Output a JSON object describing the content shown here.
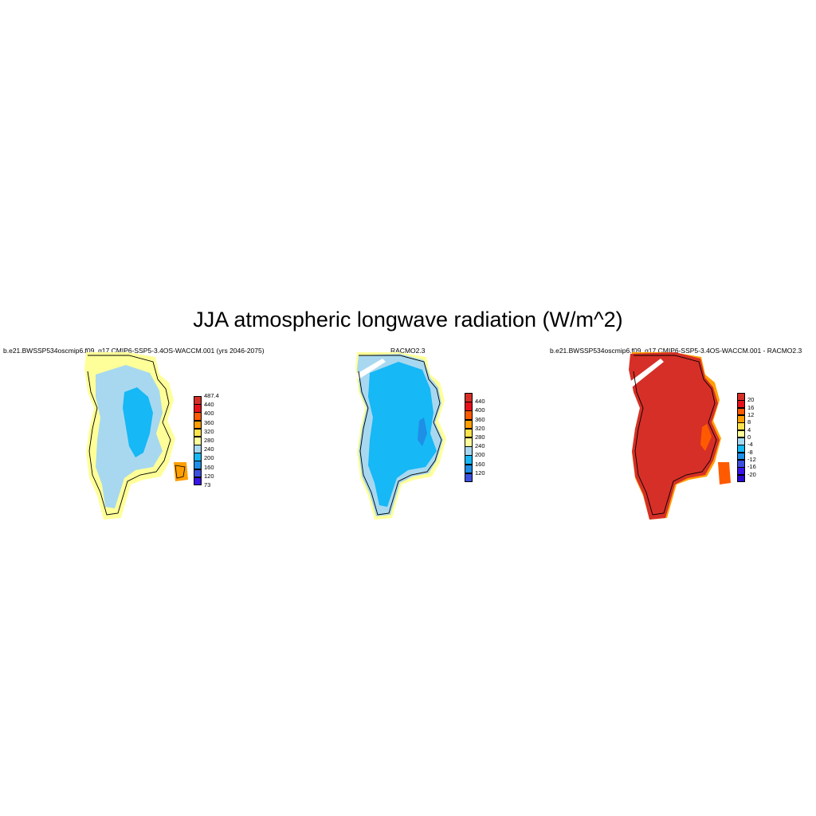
{
  "figure": {
    "title": "JJA atmospheric longwave radiation (W/m^2)"
  },
  "panels": [
    {
      "id": "model",
      "title": "b.e21.BWSSP534oscmip6.f09_g17.CMIP6-SSP5-3.4OS-WACCM.001 (yrs 2046-2075)",
      "colorbar": {
        "labels": [
          "487.4",
          "440",
          "400",
          "360",
          "320",
          "280",
          "240",
          "200",
          "160",
          "120",
          "73"
        ],
        "colors": [
          "#d62f27",
          "#e8101a",
          "#ff5a00",
          "#ff9f00",
          "#ffe34d",
          "#ffff99",
          "#a8d8f0",
          "#16b8f5",
          "#1e8ee6",
          "#3c50e0",
          "#3a14e8"
        ]
      },
      "fill": {
        "coast": "#ffff99",
        "interior": "#a8d8f0",
        "core": "#16b8f5",
        "accent": "#ff9f00"
      }
    },
    {
      "id": "obs",
      "title": "RACMO2.3",
      "colorbar": {
        "labels": [
          "440",
          "400",
          "360",
          "320",
          "280",
          "240",
          "200",
          "160",
          "120"
        ],
        "colors": [
          "#d62f27",
          "#e8101a",
          "#ff5a00",
          "#ff9f00",
          "#ffe34d",
          "#ffff99",
          "#a8d8f0",
          "#16b8f5",
          "#1e8ee6",
          "#3c50e0"
        ]
      },
      "fill": {
        "coast": "#ffff99",
        "interior": "#a8d8f0",
        "core": "#16b8f5",
        "accent": "#1e8ee6"
      }
    },
    {
      "id": "diff",
      "title": "b.e21.BWSSP534oscmip6.f09_g17.CMIP6-SSP5-3.4OS-WACCM.001 - RACMO2.3",
      "colorbar": {
        "labels": [
          "20",
          "16",
          "12",
          "8",
          "4",
          "0",
          "-4",
          "-8",
          "-12",
          "-16",
          "-20"
        ],
        "colors": [
          "#d62f27",
          "#e8101a",
          "#ff5a00",
          "#ff9f00",
          "#ffe34d",
          "#ffff99",
          "#a8d8f0",
          "#16b8f5",
          "#1e8ee6",
          "#3c50e0",
          "#3a14e8",
          "#2a0ad0"
        ]
      },
      "fill": {
        "coast": "#ff9f00",
        "interior": "#d62f27",
        "core": "#d62f27",
        "accent": "#ff5a00"
      }
    }
  ]
}
